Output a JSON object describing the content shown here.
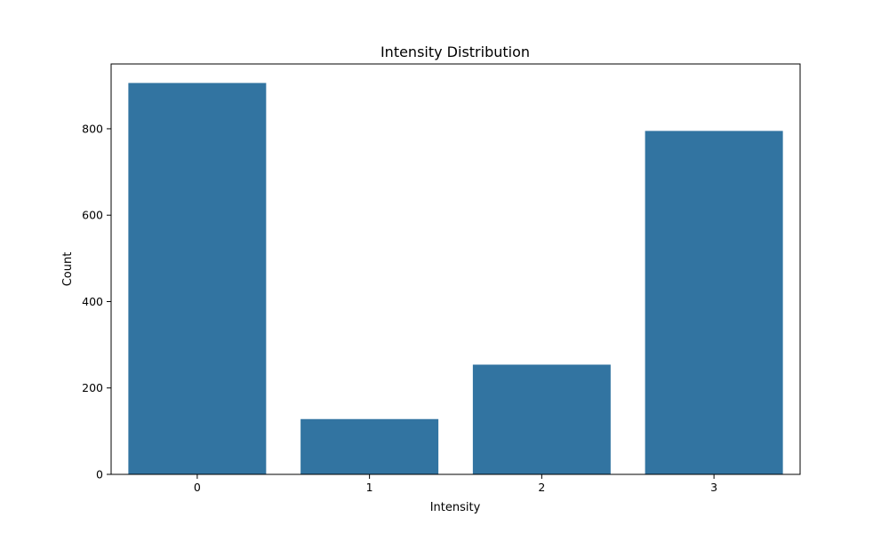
{
  "chart_data": {
    "type": "bar",
    "title": "Intensity Distribution",
    "xlabel": "Intensity",
    "ylabel": "Count",
    "categories": [
      "0",
      "1",
      "2",
      "3"
    ],
    "values": [
      906,
      128,
      254,
      795
    ],
    "ylim": [
      0,
      950
    ],
    "yticks": [
      0,
      200,
      400,
      600,
      800
    ],
    "grid": false,
    "bar_color": "#3274a1"
  }
}
